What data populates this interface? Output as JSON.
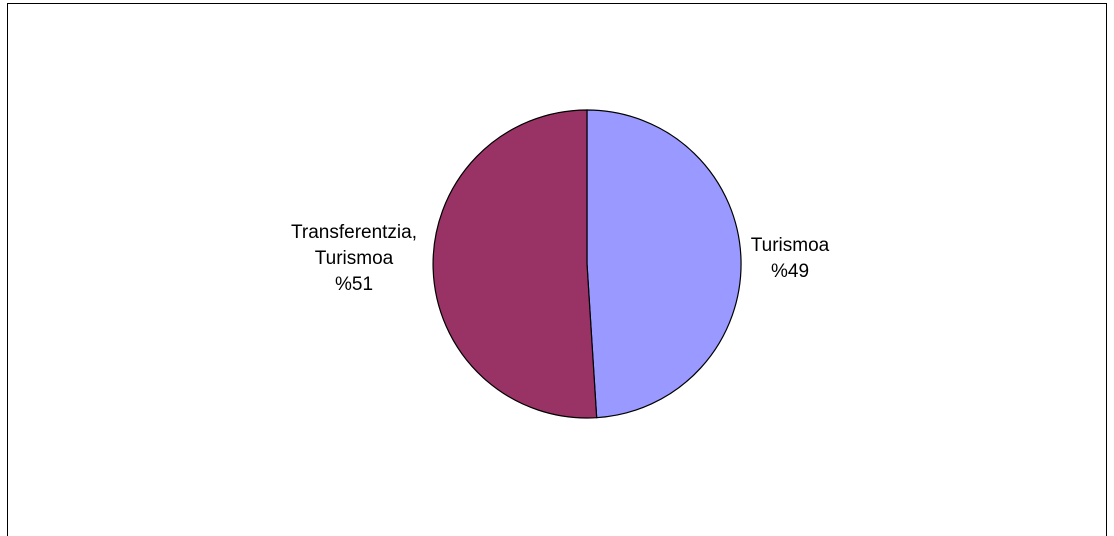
{
  "chart_data": {
    "type": "pie",
    "title": "",
    "start_angle_deg": 0,
    "direction": "clockwise",
    "slices": [
      {
        "label_lines": [
          "Turismoa"
        ],
        "value_text": "%49",
        "value": 49,
        "color": "#9999FF"
      },
      {
        "label_lines": [
          "Transferentzia,",
          "Turismoa"
        ],
        "value_text": "%51",
        "value": 51,
        "color": "#993366"
      }
    ],
    "legend": "none"
  },
  "colors": {
    "background": "#FFFFFF",
    "frame": "#000000",
    "slice_edge": "#000000"
  }
}
